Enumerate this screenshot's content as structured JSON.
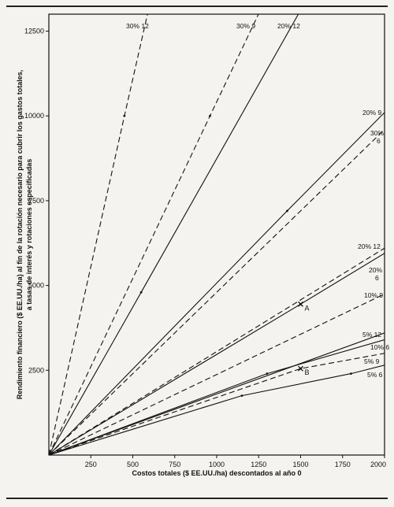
{
  "chart_data": {
    "type": "line",
    "title": "",
    "xlabel": "Costos totales ($ EE.UU./ha) descontados al año 0",
    "ylabel_line1": "Rendimiento financiero ($ EE.UU./ha) al fin de la rotación necesario para cubrir los gastos totales,",
    "ylabel_line2": "a tasas de interés y rotaciones especificadas",
    "xlim": [
      0,
      2000
    ],
    "ylim": [
      0,
      13000
    ],
    "x_ticks": [
      250,
      500,
      750,
      1000,
      1250,
      1500,
      1750,
      2000
    ],
    "y_ticks": [
      2500,
      5000,
      7500,
      10000,
      12500
    ],
    "x_tick_labels": [
      "250",
      "500",
      "750",
      "1000",
      "1250",
      "1500",
      "1750",
      "2000"
    ],
    "y_tick_labels": [
      "2500",
      "5000",
      "7500",
      "10000",
      "12500"
    ],
    "grid": false,
    "series": [
      {
        "label": "30% 12",
        "style": "dashed",
        "x": [
          0,
          450,
          1000
        ],
        "y": [
          0,
          10000,
          22000
        ],
        "label_lines": [
          "30% 12"
        ]
      },
      {
        "label": "30% 9",
        "style": "dashed",
        "x": [
          0,
          960,
          2000
        ],
        "y": [
          0,
          10000,
          20800
        ],
        "label_lines": [
          "30% 9"
        ]
      },
      {
        "label": "20% 12",
        "style": "solid",
        "x": [
          0,
          550,
          2000
        ],
        "y": [
          0,
          4800,
          17500
        ],
        "label_lines": [
          "20% 12"
        ]
      },
      {
        "label": "20% 9",
        "style": "solid",
        "x": [
          0,
          1420,
          2000
        ],
        "y": [
          0,
          7200,
          10100
        ],
        "label_lines": [
          "20% 9"
        ]
      },
      {
        "label": "30% 6",
        "style": "dashed",
        "x": [
          0,
          2000
        ],
        "y": [
          0,
          9600
        ],
        "label_lines": [
          "30%",
          "6"
        ]
      },
      {
        "label": "20% 12 (b)",
        "style": "dashed",
        "x": [
          0,
          2000
        ],
        "y": [
          0,
          6100
        ],
        "label_lines": [
          "20% 12"
        ]
      },
      {
        "label": "20% 6",
        "style": "solid",
        "x": [
          0,
          1500,
          2000
        ],
        "y": [
          0,
          4450,
          5950
        ],
        "label_lines": [
          "20%",
          "6"
        ]
      },
      {
        "label": "10% 9",
        "style": "dashed",
        "x": [
          0,
          2000
        ],
        "y": [
          0,
          4750
        ],
        "label_lines": [
          "10% 9"
        ]
      },
      {
        "label": "5% 12",
        "style": "solid",
        "x": [
          0,
          2000
        ],
        "y": [
          0,
          3600
        ],
        "label_lines": [
          "5% 12"
        ]
      },
      {
        "label": "10% 6",
        "style": "solid",
        "x": [
          0,
          1300,
          2000
        ],
        "y": [
          0,
          2400,
          3400
        ],
        "label_lines": [
          "10% 6"
        ]
      },
      {
        "label": "5% 9",
        "style": "dashed",
        "x": [
          0,
          1500,
          2000
        ],
        "y": [
          0,
          2550,
          3000
        ],
        "label_lines": [
          "5% 9"
        ]
      },
      {
        "label": "5% 6",
        "style": "solid",
        "x": [
          0,
          1150,
          1800,
          2000
        ],
        "y": [
          0,
          1750,
          2400,
          2650
        ],
        "label_lines": [
          "5% 6"
        ]
      }
    ],
    "annotations": [
      {
        "text": "A",
        "x": 1500,
        "y": 4450
      },
      {
        "text": "B",
        "x": 1500,
        "y": 2550
      }
    ]
  }
}
